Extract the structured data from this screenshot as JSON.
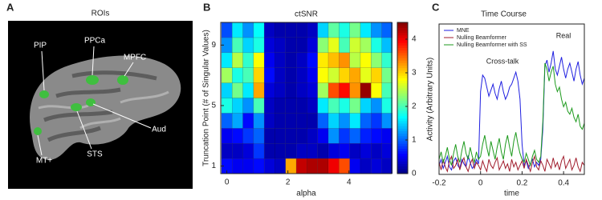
{
  "panel_letters": [
    "A",
    "B",
    "C"
  ],
  "roi_panel": {
    "title": "ROIs",
    "regions": [
      "PIP",
      "PPCa",
      "MPFC",
      "Aud",
      "STS",
      "MT+"
    ]
  },
  "chart_data": [
    {
      "type": "heatmap",
      "title": "ctSNR",
      "xlabel": "alpha",
      "ylabel": "Truncation Point (# of Singular Values)",
      "x": [
        0,
        0.35,
        0.7,
        1.05,
        1.4,
        1.75,
        2.1,
        2.45,
        2.8,
        3.15,
        3.5,
        3.85,
        4.2,
        4.55,
        4.9,
        5.25
      ],
      "y": [
        1,
        2,
        3,
        4,
        5,
        6,
        7,
        8,
        9,
        10
      ],
      "z": [
        [
          0.6,
          0.5,
          0.5,
          0.6,
          0.4,
          0.3,
          3.2,
          4.2,
          4.3,
          4.3,
          4.0,
          3.6,
          0.5,
          0.3,
          0.4,
          0.3
        ],
        [
          0.3,
          0.3,
          0.4,
          0.8,
          0.2,
          0.2,
          0.2,
          0.3,
          0.3,
          0.2,
          0.4,
          0.5,
          0.3,
          0.4,
          0.3,
          0.4
        ],
        [
          0.5,
          0.6,
          0.8,
          1.0,
          0.2,
          0.2,
          0.2,
          0.2,
          0.3,
          0.5,
          1.2,
          0.8,
          1.0,
          0.7,
          0.6,
          0.5
        ],
        [
          1.0,
          1.3,
          0.6,
          1.2,
          0.3,
          0.2,
          0.2,
          0.2,
          0.2,
          1.0,
          1.5,
          1.2,
          1.6,
          1.0,
          0.8,
          1.2
        ],
        [
          1.8,
          1.5,
          1.2,
          2.0,
          0.3,
          0.2,
          0.2,
          0.2,
          0.3,
          1.6,
          2.0,
          1.8,
          2.2,
          1.5,
          1.2,
          1.8
        ],
        [
          1.5,
          2.2,
          1.6,
          3.2,
          0.4,
          0.3,
          0.2,
          0.3,
          0.4,
          2.4,
          3.6,
          3.9,
          3.3,
          4.4,
          2.8,
          2.0
        ],
        [
          2.4,
          1.8,
          2.0,
          3.0,
          0.6,
          0.3,
          0.2,
          0.3,
          0.5,
          2.8,
          2.6,
          3.0,
          3.2,
          2.7,
          3.0,
          2.2
        ],
        [
          1.6,
          2.5,
          1.9,
          2.8,
          0.5,
          0.3,
          0.2,
          0.3,
          0.6,
          2.9,
          3.1,
          3.3,
          2.5,
          2.8,
          2.3,
          1.9
        ],
        [
          1.2,
          2.0,
          1.5,
          1.8,
          0.4,
          0.3,
          0.2,
          0.2,
          0.4,
          2.3,
          2.7,
          2.0,
          2.6,
          2.4,
          1.8,
          1.4
        ],
        [
          0.9,
          1.6,
          1.2,
          1.7,
          0.3,
          0.2,
          0.2,
          0.2,
          0.3,
          1.5,
          2.1,
          1.8,
          2.2,
          1.6,
          1.2,
          1.0
        ]
      ],
      "xlim": [
        -0.2,
        5.4
      ],
      "xticks": [
        0,
        2,
        4
      ],
      "ylim": [
        0.5,
        10.5
      ],
      "yticks": [
        1,
        5,
        9
      ],
      "zlim": [
        0,
        4.5
      ],
      "zticks": [
        0,
        1,
        2,
        3,
        4
      ],
      "colormap": "jet"
    },
    {
      "type": "line",
      "title": "Time Course",
      "xlabel": "time",
      "ylabel": "Activity (Arbitrary Units)",
      "x": [
        -0.2,
        -0.19,
        -0.18,
        -0.17,
        -0.16,
        -0.15,
        -0.14,
        -0.13,
        -0.12,
        -0.11,
        -0.1,
        -0.09,
        -0.08,
        -0.07,
        -0.06,
        -0.05,
        -0.04,
        -0.03,
        -0.02,
        -0.01,
        0,
        0.01,
        0.02,
        0.03,
        0.04,
        0.05,
        0.06,
        0.07,
        0.08,
        0.09,
        0.1,
        0.11,
        0.12,
        0.13,
        0.14,
        0.15,
        0.16,
        0.17,
        0.18,
        0.19,
        0.2,
        0.21,
        0.22,
        0.23,
        0.24,
        0.25,
        0.26,
        0.27,
        0.28,
        0.29,
        0.3,
        0.31,
        0.32,
        0.33,
        0.34,
        0.35,
        0.36,
        0.37,
        0.38,
        0.39,
        0.4,
        0.41,
        0.42,
        0.43,
        0.44,
        0.45,
        0.46,
        0.47,
        0.48,
        0.49,
        0.5
      ],
      "series": [
        {
          "name": "MNE",
          "color": "#1f1fe0",
          "values": [
            0.06,
            0.1,
            0.04,
            0.08,
            0.12,
            0.05,
            0.03,
            0.09,
            0.11,
            0.06,
            0.04,
            0.1,
            0.07,
            0.05,
            0.12,
            0.08,
            0.04,
            0.06,
            0.1,
            0.07,
            0.55,
            0.66,
            0.64,
            0.58,
            0.52,
            0.56,
            0.6,
            0.54,
            0.5,
            0.57,
            0.62,
            0.55,
            0.5,
            0.53,
            0.58,
            0.6,
            0.64,
            0.68,
            0.62,
            0.5,
            0.2,
            0.06,
            0.09,
            0.04,
            0.07,
            0.1,
            0.05,
            0.08,
            0.06,
            0.1,
            0.3,
            0.72,
            0.76,
            0.68,
            0.74,
            0.82,
            0.7,
            0.66,
            0.72,
            0.78,
            0.7,
            0.64,
            0.7,
            0.74,
            0.68,
            0.62,
            0.7,
            0.75,
            0.66,
            0.6,
            0.64
          ]
        },
        {
          "name": "Nulling Beamformer",
          "color": "#a01c2c",
          "values": [
            0.08,
            0.03,
            0.1,
            0.05,
            0.02,
            0.09,
            0.12,
            0.04,
            0.06,
            0.1,
            0.03,
            0.08,
            0.11,
            0.05,
            0.02,
            0.07,
            0.1,
            0.04,
            0.08,
            0.06,
            0.03,
            0.09,
            0.05,
            0.02,
            0.1,
            0.06,
            0.04,
            0.08,
            0.11,
            0.03,
            0.06,
            0.09,
            0.04,
            0.07,
            0.02,
            0.1,
            0.05,
            0.08,
            0.03,
            0.06,
            0.09,
            0.04,
            0.1,
            0.06,
            0.02,
            0.08,
            0.12,
            0.05,
            0.03,
            0.09,
            0.06,
            0.02,
            0.1,
            0.07,
            0.04,
            0.11,
            0.05,
            0.08,
            0.03,
            0.09,
            0.12,
            0.04,
            0.07,
            0.1,
            0.03,
            0.06,
            0.11,
            0.05,
            0.02,
            0.08,
            0.06
          ]
        },
        {
          "name": "Nulling Beamformer with SS",
          "color": "#1d9a1d",
          "values": [
            0.1,
            0.15,
            0.08,
            0.12,
            0.18,
            0.1,
            0.06,
            0.14,
            0.2,
            0.12,
            0.08,
            0.16,
            0.22,
            0.14,
            0.1,
            0.18,
            0.12,
            0.08,
            0.15,
            0.1,
            0.12,
            0.2,
            0.26,
            0.18,
            0.12,
            0.22,
            0.16,
            0.1,
            0.18,
            0.24,
            0.15,
            0.1,
            0.2,
            0.26,
            0.18,
            0.12,
            0.22,
            0.28,
            0.2,
            0.14,
            0.1,
            0.08,
            0.14,
            0.1,
            0.06,
            0.12,
            0.16,
            0.1,
            0.08,
            0.12,
            0.35,
            0.74,
            0.7,
            0.62,
            0.68,
            0.72,
            0.6,
            0.55,
            0.58,
            0.5,
            0.45,
            0.48,
            0.42,
            0.4,
            0.44,
            0.38,
            0.35,
            0.4,
            0.32,
            0.3,
            0.34
          ]
        }
      ],
      "annotations": [
        "Cross-talk",
        "Real"
      ],
      "xlim": [
        -0.2,
        0.5
      ],
      "xticks": [
        -0.2,
        0,
        0.2,
        0.4
      ],
      "ylim": [
        0,
        1
      ],
      "legend": "upper left"
    }
  ]
}
